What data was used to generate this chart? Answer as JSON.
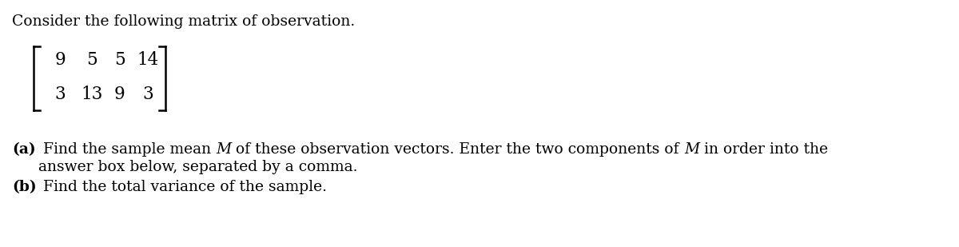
{
  "title_text": "Consider the following matrix of observation.",
  "row1_nums": [
    "9",
    "5",
    "5",
    "14"
  ],
  "row2_nums": [
    "3",
    "13",
    "9",
    "3"
  ],
  "part_a_bold": "(a)",
  "part_a_seg1": " Find the sample mean ",
  "part_a_M1": "M",
  "part_a_seg2": " of these observation vectors. Enter the two components of ",
  "part_a_M2": "M",
  "part_a_seg3": " in order into the",
  "part_a_line2": "    answer box below, separated by a comma.",
  "part_b_bold": "(b)",
  "part_b_text": " Find the total variance of the sample.",
  "bg_color": "#ffffff",
  "text_color": "#000000",
  "font_size_title": 13.5,
  "font_size_matrix": 15.5,
  "font_size_body": 13.5
}
